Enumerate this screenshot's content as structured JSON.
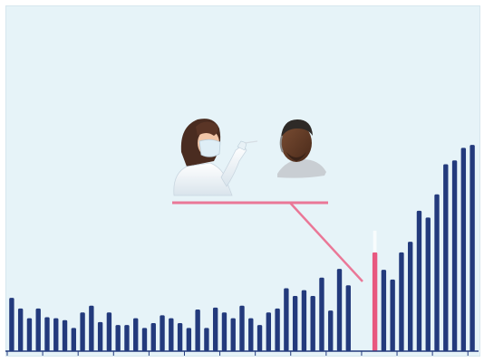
{
  "chart_data": {
    "type": "bar",
    "highlight_index": 41,
    "values": [
      55,
      44,
      34,
      44,
      35,
      34,
      32,
      24,
      40,
      47,
      30,
      40,
      27,
      27,
      34,
      24,
      29,
      37,
      34,
      29,
      24,
      43,
      24,
      45,
      40,
      34,
      47,
      34,
      27,
      40,
      44,
      65,
      57,
      63,
      57,
      76,
      42,
      85,
      68,
      0,
      0,
      102,
      84,
      74,
      102,
      113,
      145,
      138,
      162,
      193,
      197,
      210,
      213
    ],
    "ylim": [
      0,
      215
    ],
    "grid": false,
    "xlabel": "",
    "ylabel": "",
    "colors": {
      "bar": "#233a7c",
      "highlight": "#e8587f",
      "pointer": "#ea7797",
      "background": "#e6f3f8",
      "axis": "#233a7c"
    }
  },
  "illustration": {
    "figures": [
      "health-worker-with-mask",
      "patient"
    ]
  }
}
